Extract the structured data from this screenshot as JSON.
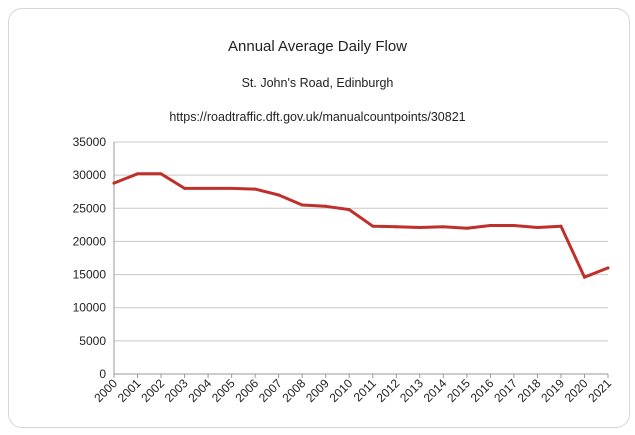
{
  "chart_data": {
    "type": "line",
    "title": "Annual Average Daily Flow",
    "subtitle": "St. John's Road, Edinburgh",
    "source": "https://roadtraffic.dft.gov.uk/manualcountpoints/30821",
    "xlabel": "",
    "ylabel": "",
    "ylim": [
      0,
      35000
    ],
    "yticks": [
      0,
      5000,
      10000,
      15000,
      20000,
      25000,
      30000,
      35000
    ],
    "ytick_labels": [
      "0",
      "5000",
      "10000",
      "15000",
      "20000",
      "25000",
      "30000",
      "35000"
    ],
    "grid": "horizontal",
    "legend": "none",
    "line_color": "#c0302b",
    "categories": [
      "2000",
      "2001",
      "2002",
      "2003",
      "2004",
      "2005",
      "2006",
      "2007",
      "2008",
      "2009",
      "2010",
      "2011",
      "2012",
      "2013",
      "2014",
      "2015",
      "2016",
      "2017",
      "2018",
      "2019",
      "2020",
      "2021"
    ],
    "series": [
      {
        "values": [
          28800,
          30200,
          30200,
          28000,
          28000,
          28000,
          27900,
          27000,
          25500,
          25300,
          24800,
          22300,
          22200,
          22100,
          22200,
          22000,
          22400,
          22400,
          22100,
          22300,
          14600,
          16000
        ]
      }
    ]
  }
}
